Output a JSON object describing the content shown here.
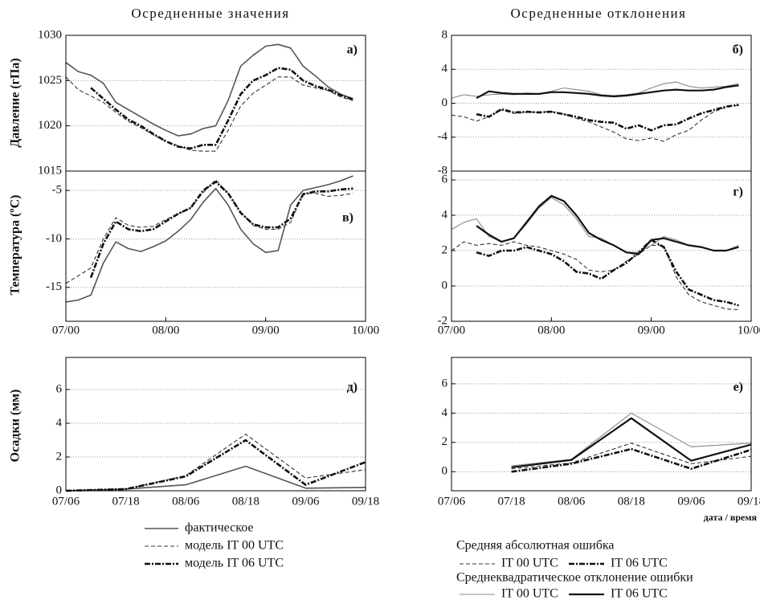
{
  "titles": [
    "Осредненные значения",
    "Осредненные отклонения"
  ],
  "ylabels": [
    "Давление (гПа)",
    "Температура (ºC)",
    "Осадки (мм)"
  ],
  "xlabel": "дата / время",
  "legend_groups": [
    "Средняя абсолютная ошибка",
    "Среднеквадратическое отклонение ошибки"
  ],
  "chart_data": [
    {
      "type": "line",
      "annotation": "а)",
      "ylim": [
        1015,
        1030
      ],
      "yticks": [
        1015,
        1020,
        1025,
        1030
      ],
      "xlim": [
        0,
        72
      ],
      "grid": true,
      "x": [
        0,
        3,
        6,
        9,
        12,
        15,
        18,
        21,
        24,
        27,
        30,
        33,
        36,
        39,
        42,
        45,
        48,
        51,
        54,
        57,
        60,
        63,
        66,
        69
      ],
      "series": [
        {
          "name": "фактическое",
          "color": "#555555",
          "style": "solid",
          "width": 1.6,
          "values": [
            1027,
            1026,
            1025.6,
            1024.7,
            1022.6,
            1021.8,
            1021,
            1020.2,
            1019.5,
            1018.9,
            1019.1,
            1019.7,
            1020,
            1022.8,
            1026.6,
            1027.8,
            1028.8,
            1029,
            1028.6,
            1026.6,
            1025.5,
            1024.3,
            1023.5,
            1023
          ]
        },
        {
          "name": "модель IT 00 UTC",
          "color": "#333333",
          "style": "dashed",
          "width": 1.1,
          "values": [
            1025.4,
            1024,
            1023.3,
            1022.6,
            1021.5,
            1020.5,
            1019.8,
            1019,
            1018.3,
            1017.8,
            1017.3,
            1017.2,
            1017.2,
            1019.5,
            1022.2,
            1023.6,
            1024.5,
            1025.4,
            1025.4,
            1024.5,
            1024.2,
            1023.9,
            1023.2,
            1022.8
          ]
        },
        {
          "name": "модель IT 06 UTC",
          "color": "#111111",
          "style": "dashdot",
          "width": 2.6,
          "values": [
            null,
            null,
            1024.2,
            1023,
            1021.8,
            1020.7,
            1020,
            1019.1,
            1018.3,
            1017.7,
            1017.5,
            1017.9,
            1017.9,
            1020.6,
            1023.5,
            1025,
            1025.6,
            1026.4,
            1026.2,
            1025,
            1024.4,
            1024,
            1023.4,
            1022.9
          ]
        }
      ]
    },
    {
      "type": "line",
      "annotation": "б)",
      "ylim": [
        -8,
        8
      ],
      "yticks": [
        -8,
        -4,
        0,
        4,
        8
      ],
      "xlim": [
        0,
        72
      ],
      "grid": true,
      "x": [
        0,
        3,
        6,
        9,
        12,
        15,
        18,
        21,
        24,
        27,
        30,
        33,
        36,
        39,
        42,
        45,
        48,
        51,
        54,
        57,
        60,
        63,
        66,
        69
      ],
      "series": [
        {
          "name": "IT 00 UTC",
          "color": "#333333",
          "style": "dashed",
          "width": 1.1,
          "values": [
            -1.4,
            -1.6,
            -2.1,
            -1.6,
            -0.8,
            -1.2,
            -1.1,
            -1,
            -1,
            -1.3,
            -1.8,
            -2.2,
            -2.8,
            -3.4,
            -4.2,
            -4.4,
            -4.1,
            -4.5,
            -3.7,
            -3.2,
            -2,
            -1,
            -0.5,
            -0.2
          ]
        },
        {
          "name": "IT 06 UTC",
          "color": "#111111",
          "style": "dashdot",
          "width": 2.6,
          "values": [
            null,
            null,
            -1.3,
            -1.6,
            -0.7,
            -1.1,
            -1,
            -1.1,
            -1,
            -1.3,
            -1.6,
            -2,
            -2.2,
            -2.3,
            -3,
            -2.6,
            -3.2,
            -2.6,
            -2.5,
            -1.8,
            -1.2,
            -0.8,
            -0.4,
            -0.2
          ]
        },
        {
          "name": "IT 00 UTC",
          "color": "#888888",
          "style": "solid",
          "width": 1.1,
          "values": [
            0.6,
            1,
            0.8,
            1,
            1.1,
            1,
            1.2,
            1.1,
            1.4,
            1.8,
            1.6,
            1.4,
            1,
            0.9,
            1,
            1.2,
            1.8,
            2.3,
            2.5,
            2,
            1.8,
            1.9,
            2,
            2.3
          ]
        },
        {
          "name": "IT 06 UTC",
          "color": "#111111",
          "style": "solid",
          "width": 2.2,
          "values": [
            null,
            null,
            0.6,
            1.4,
            1.2,
            1.1,
            1.1,
            1.1,
            1.3,
            1.3,
            1.2,
            1.1,
            0.9,
            0.8,
            0.9,
            1.1,
            1.3,
            1.5,
            1.6,
            1.5,
            1.5,
            1.6,
            1.9,
            2.1
          ]
        }
      ]
    },
    {
      "type": "line",
      "annotation": "в)",
      "ylim": [
        -18.5,
        -3
      ],
      "yticks": [
        -15,
        -10,
        -5
      ],
      "xlim": [
        0,
        72
      ],
      "grid": true,
      "xticks": [
        {
          "value": 0,
          "label": "07/00"
        },
        {
          "value": 24,
          "label": "08/00"
        },
        {
          "value": 48,
          "label": "09/00"
        },
        {
          "value": 72,
          "label": "10/00"
        }
      ],
      "x": [
        0,
        3,
        6,
        9,
        12,
        15,
        18,
        21,
        24,
        27,
        30,
        33,
        36,
        39,
        42,
        45,
        48,
        51,
        54,
        57,
        60,
        63,
        66,
        69
      ],
      "series": [
        {
          "name": "фактическое",
          "color": "#555555",
          "style": "solid",
          "width": 1.6,
          "values": [
            -16.5,
            -16.3,
            -15.8,
            -12.5,
            -10.3,
            -11,
            -11.3,
            -10.8,
            -10.2,
            -9.2,
            -8,
            -6.2,
            -4.8,
            -6.5,
            -9,
            -10.5,
            -11.4,
            -11.2,
            -6.5,
            -5,
            -4.7,
            -4.4,
            -4,
            -3.5
          ]
        },
        {
          "name": "модель IT 00 UTC",
          "color": "#333333",
          "style": "dashed",
          "width": 1.1,
          "values": [
            -14.6,
            -13.8,
            -13,
            -10,
            -7.8,
            -8.6,
            -8.8,
            -8.7,
            -8,
            -7.4,
            -6.8,
            -5.2,
            -3.9,
            -5.3,
            -7.2,
            -8.6,
            -9,
            -9,
            -8.3,
            -5.3,
            -5.3,
            -5.6,
            -5.5,
            -5.3
          ]
        },
        {
          "name": "модель IT 06 UTC",
          "color": "#111111",
          "style": "dashdot",
          "width": 2.6,
          "values": [
            null,
            null,
            -14,
            -10.5,
            -8.2,
            -9,
            -9.2,
            -9,
            -8.2,
            -7.4,
            -6.8,
            -5,
            -4.1,
            -5.3,
            -7.3,
            -8.5,
            -8.8,
            -8.8,
            -7.9,
            -5.4,
            -5.1,
            -5.1,
            -4.9,
            -4.8
          ]
        }
      ]
    },
    {
      "type": "line",
      "annotation": "г)",
      "ylim": [
        -2,
        6.5
      ],
      "yticks": [
        -2,
        0,
        2,
        4,
        6
      ],
      "xlim": [
        0,
        72
      ],
      "grid": true,
      "xticks": [
        {
          "value": 0,
          "label": "07/00"
        },
        {
          "value": 24,
          "label": "08/00"
        },
        {
          "value": 48,
          "label": "09/00"
        },
        {
          "value": 72,
          "label": "10/00"
        }
      ],
      "x": [
        0,
        3,
        6,
        9,
        12,
        15,
        18,
        21,
        24,
        27,
        30,
        33,
        36,
        39,
        42,
        45,
        48,
        51,
        54,
        57,
        60,
        63,
        66,
        69
      ],
      "series": [
        {
          "name": "IT 00 UTC",
          "color": "#333333",
          "style": "dashed",
          "width": 1.1,
          "values": [
            2,
            2.5,
            2.3,
            2.4,
            2.3,
            2.5,
            2.3,
            2.2,
            2,
            1.8,
            1.5,
            0.9,
            0.8,
            0.9,
            1.4,
            1.8,
            2.3,
            2.3,
            0.5,
            -0.5,
            -0.9,
            -1.1,
            -1.3,
            -1.35
          ]
        },
        {
          "name": "IT 06 UTC",
          "color": "#111111",
          "style": "dashdot",
          "width": 2.6,
          "values": [
            null,
            null,
            1.9,
            1.7,
            2,
            2,
            2.2,
            2,
            1.8,
            1.4,
            0.8,
            0.7,
            0.4,
            0.9,
            1.3,
            1.9,
            2.6,
            2.2,
            0.8,
            -0.2,
            -0.5,
            -0.8,
            -0.9,
            -1.1
          ]
        },
        {
          "name": "IT 00 UTC",
          "color": "#888888",
          "style": "solid",
          "width": 1.1,
          "values": [
            3.2,
            3.6,
            3.8,
            2.8,
            2.5,
            2.7,
            3.5,
            4.4,
            5,
            4.6,
            3.8,
            2.8,
            2.7,
            2.3,
            1.9,
            1.9,
            2.3,
            2.8,
            2.6,
            2.3,
            2.2,
            2,
            2,
            2.3
          ]
        },
        {
          "name": "IT 06 UTC",
          "color": "#111111",
          "style": "solid",
          "width": 2.2,
          "values": [
            null,
            null,
            3.4,
            2.9,
            2.5,
            2.7,
            3.6,
            4.5,
            5.1,
            4.8,
            4,
            3,
            2.6,
            2.3,
            1.9,
            1.8,
            2.6,
            2.7,
            2.5,
            2.3,
            2.2,
            2,
            2,
            2.2
          ]
        }
      ]
    },
    {
      "type": "line",
      "annotation": "д)",
      "ylim": [
        0,
        7.9
      ],
      "yticks": [
        0,
        2,
        4,
        6
      ],
      "grid": true,
      "categories": [
        "07/06",
        "07/18",
        "08/06",
        "08/18",
        "09/06",
        "09/18"
      ],
      "series": [
        {
          "name": "фактическое",
          "color": "#555555",
          "style": "solid",
          "width": 1.6,
          "values": [
            0,
            0.1,
            0.35,
            1.45,
            0.15,
            0.2
          ]
        },
        {
          "name": "модель IT 00 UTC",
          "color": "#333333",
          "style": "dashed",
          "width": 1.1,
          "values": [
            0,
            0.1,
            0.9,
            3.35,
            0.75,
            1.25
          ]
        },
        {
          "name": "модель IT 06 UTC",
          "color": "#111111",
          "style": "dashdot",
          "width": 2.6,
          "values": [
            0,
            0.1,
            0.85,
            3,
            0.35,
            1.7
          ]
        }
      ]
    },
    {
      "type": "line",
      "annotation": "е)",
      "ylim": [
        -1.3,
        7.8
      ],
      "yticks": [
        0,
        2,
        4,
        6
      ],
      "grid": true,
      "categories": [
        "07/06",
        "07/18",
        "08/06",
        "08/18",
        "09/06",
        "09/18"
      ],
      "series": [
        {
          "name": "IT 00 UTC",
          "color": "#333333",
          "style": "dashed",
          "width": 1.1,
          "values": [
            null,
            0.2,
            0.6,
            1.95,
            0.55,
            1.05
          ]
        },
        {
          "name": "IT 06 UTC",
          "color": "#111111",
          "style": "dashdot",
          "width": 2.6,
          "values": [
            null,
            0,
            0.55,
            1.55,
            0.2,
            1.5
          ]
        },
        {
          "name": "IT 00 UTC",
          "color": "#888888",
          "style": "solid",
          "width": 1.1,
          "values": [
            null,
            0.4,
            0.85,
            4,
            1.7,
            1.95
          ]
        },
        {
          "name": "IT 06 UTC",
          "color": "#111111",
          "style": "solid",
          "width": 2.2,
          "values": [
            null,
            0.3,
            0.8,
            3.65,
            0.75,
            1.85
          ]
        }
      ]
    }
  ]
}
